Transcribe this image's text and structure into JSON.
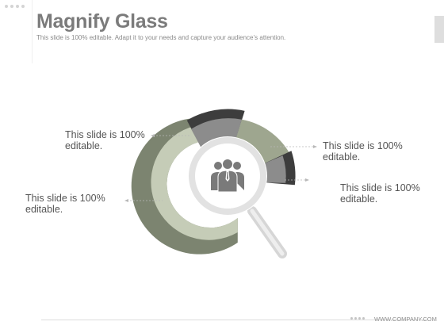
{
  "header": {
    "title": "Magnify Glass",
    "subtitle": "This slide is 100% editable. Adapt it to your needs and capture your audience’s attention."
  },
  "callouts": [
    {
      "label": "This slide is 100% editable."
    },
    {
      "label": "This slide is 100% editable."
    },
    {
      "label": "This slide is 100% editable."
    },
    {
      "label": "This slide is 100% editable."
    }
  ],
  "footer": {
    "url": "WWW.COMPANY.COM"
  },
  "icons": {
    "center": "people-icon"
  },
  "colors": {
    "segment_dark": "#3d3d3d",
    "segment_gray": "#8c8c8c",
    "segment_sage": "#9ea68f",
    "segment_light_sage": "#c5ccb7",
    "segment_olive": "#7c8470",
    "lens_ring": "#e4e4e4",
    "handle": "#dadada",
    "title": "#7b7b7b"
  }
}
